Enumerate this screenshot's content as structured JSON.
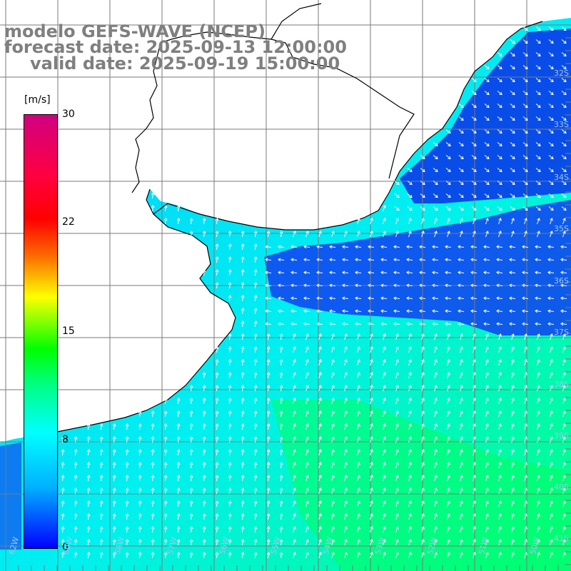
{
  "header": {
    "line1": "modelo GEFS-WAVE (NCEP)",
    "line2": "forecast date: 2025-09-13 12:00:00",
    "line3": "valid date: 2025-09-19 15:00:00"
  },
  "colorbar": {
    "unit": "[m/s]",
    "ticks": [
      "30",
      "22",
      "15",
      "8",
      "0"
    ],
    "range": [
      0,
      30
    ],
    "colors": {
      "low": "#0000ff",
      "mid_low": "#00ffff",
      "mid": "#00ff00",
      "mid_high": "#ffff00",
      "high": "#ff0000",
      "max": "#d00080"
    }
  },
  "map": {
    "land_color": "#ffffff",
    "grid_color": "#7a7a7a",
    "coast_color": "#000000",
    "arrow_color": "#ffffff",
    "lat_labels": [
      "32S",
      "33S",
      "34S",
      "35S",
      "36S",
      "37S",
      "38S",
      "39S",
      "40S",
      "41S"
    ],
    "lon_labels": [
      "62W",
      "60W",
      "58W",
      "57W",
      "56W",
      "55W",
      "54W",
      "53W",
      "52W",
      "51W",
      "50W"
    ]
  }
}
